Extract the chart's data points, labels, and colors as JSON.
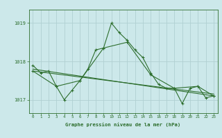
{
  "background_color": "#cce8ea",
  "grid_color": "#b0d0d2",
  "line_color": "#2d6e2d",
  "title": "Graphe pression niveau de la mer (hPa)",
  "ylabel_ticks": [
    1017,
    1018,
    1019
  ],
  "xlim": [
    -0.5,
    23.5
  ],
  "ylim": [
    1016.65,
    1019.35
  ],
  "x_ticks": [
    0,
    1,
    2,
    3,
    4,
    5,
    6,
    7,
    8,
    9,
    10,
    11,
    12,
    13,
    14,
    15,
    16,
    17,
    18,
    19,
    20,
    21,
    22,
    23
  ],
  "series1": {
    "x": [
      0,
      1,
      2,
      3,
      4,
      5,
      6,
      7,
      8,
      9,
      10,
      11,
      12,
      13,
      14,
      15,
      16,
      17,
      18,
      19,
      20,
      21,
      22,
      23
    ],
    "y": [
      1017.9,
      1017.7,
      1017.75,
      1017.35,
      1017.0,
      1017.25,
      1017.5,
      1017.8,
      1018.3,
      1018.35,
      1019.0,
      1018.75,
      1018.55,
      1018.3,
      1018.1,
      1017.7,
      1017.4,
      1017.3,
      1017.3,
      1016.9,
      1017.3,
      1017.35,
      1017.05,
      1017.1
    ]
  },
  "series2": {
    "x": [
      0,
      3,
      6,
      9,
      12,
      15,
      18,
      21,
      23
    ],
    "y": [
      1017.75,
      1017.35,
      1017.5,
      1018.35,
      1018.5,
      1017.65,
      1017.3,
      1017.35,
      1017.1
    ]
  },
  "series3": {
    "x": [
      0,
      23
    ],
    "y": [
      1017.8,
      1017.1
    ]
  },
  "series4": {
    "x": [
      0,
      23
    ],
    "y": [
      1017.75,
      1017.15
    ]
  }
}
